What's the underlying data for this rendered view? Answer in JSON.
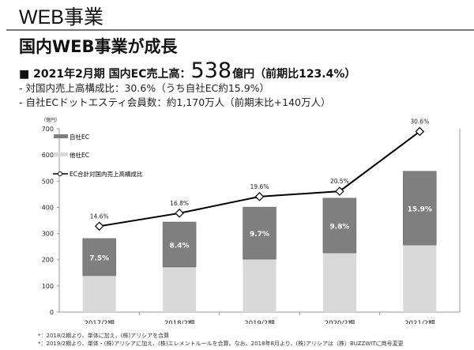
{
  "header": {
    "title": "WEB事業",
    "subtitle": "国内WEB事業が成長",
    "headline_prefix": "■ 2021年2月期 国内EC売上高：",
    "headline_value": "538",
    "headline_unit": "億円（前期比123.4%）",
    "bullet1": "- 対国内売上高構成比：30.6%（うち自社EC約15.9%）",
    "bullet2": "- 自社ECドットエスティ会員数：約1,170万人（前期末比+140万人）"
  },
  "chart_data": {
    "type": "bar",
    "stacked": true,
    "unit_label": "（億円）",
    "categories": [
      "2017/2期",
      "2018/2期",
      "2019/2期",
      "2020/2期",
      "2021/2期"
    ],
    "ylim": [
      0,
      700
    ],
    "yticks": [
      0,
      100,
      200,
      300,
      400,
      500,
      600,
      700
    ],
    "series": [
      {
        "name": "他社EC",
        "type": "bar",
        "color": "#d9d9d9",
        "values": [
          139,
          172,
          202,
          226,
          256
        ]
      },
      {
        "name": "自社EC",
        "type": "bar",
        "color": "#7f7f7f",
        "values": [
          142,
          172,
          199,
          209,
          282
        ],
        "labels": [
          "7.5%",
          "8.4%",
          "9.7%",
          "9.8%",
          "15.9%"
        ]
      },
      {
        "name": "EC合計対国内売上高構成比",
        "type": "line",
        "color": "#000000",
        "values": [
          14.6,
          16.8,
          19.6,
          20.5,
          30.6
        ],
        "labels": [
          "14.6%",
          "16.8%",
          "19.6%",
          "20.5%",
          "30.6%"
        ]
      }
    ],
    "legend": "top-left",
    "grid": false
  },
  "notes": [
    "*：2018/2期より、単体に加え、(株)アリシアを合算",
    "*：2019/2期より、単体・(株)アリシアに加え、(株)エレメントルールを合算。なお、2018年8月より、(株)アリシアは（株）BUZZWITに商号変更"
  ]
}
